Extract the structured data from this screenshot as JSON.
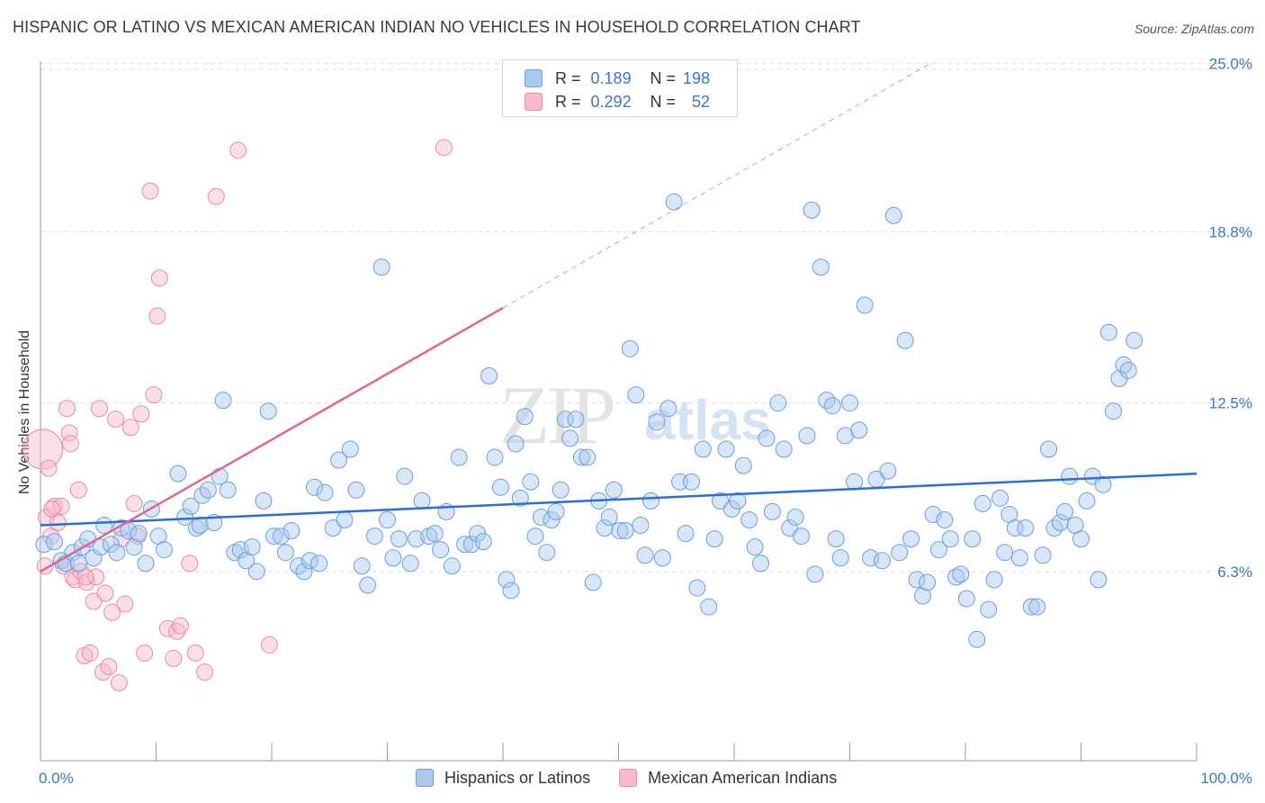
{
  "title": "HISPANIC OR LATINO VS MEXICAN AMERICAN INDIAN NO VEHICLES IN HOUSEHOLD CORRELATION CHART",
  "source": "Source: ZipAtlas.com",
  "watermark": {
    "zip": "ZIP",
    "atlas": "atlas"
  },
  "colors": {
    "blue_fill": "#aac8f0",
    "blue_stroke": "#6a9fe0",
    "blue_line": "#2d6fd1",
    "pink_fill": "#f7b9cb",
    "pink_stroke": "#e98aa8",
    "pink_line": "#e0668f",
    "axis_text": "#3b78c9",
    "grid": "#dddddd"
  },
  "legend_top": [
    {
      "r_label": "R =",
      "r_value": "0.189",
      "n_label": "N =",
      "n_value": "198"
    },
    {
      "r_label": "R =",
      "r_value": "0.292",
      "n_label": "N =",
      "n_value": "52"
    }
  ],
  "legend_bottom": [
    "Hispanics or Latinos",
    "Mexican American Indians"
  ],
  "chart_data": {
    "type": "scatter",
    "title": "HISPANIC OR LATINO VS MEXICAN AMERICAN INDIAN NO VEHICLES IN HOUSEHOLD CORRELATION CHART",
    "xlabel": "",
    "ylabel": "No Vehicles in Household",
    "xlim": [
      0,
      100
    ],
    "ylim": [
      0,
      27
    ],
    "x_tick_labels": [
      "0.0%",
      "100.0%"
    ],
    "y_ticks": [
      6.3,
      12.5,
      18.8,
      25.0
    ],
    "y_tick_labels": [
      "6.3%",
      "12.5%",
      "18.8%",
      "25.0%"
    ],
    "grid": "horizontal dashed",
    "legend_position": "top-center",
    "series": [
      {
        "name": "Hispanics or Latinos",
        "color": "#aac8f0",
        "r": 0.189,
        "n": 198,
        "trend": {
          "x": [
            0,
            100
          ],
          "y": [
            8.0,
            9.9
          ],
          "style": "solid"
        },
        "points": [
          [
            0.3,
            7.3
          ],
          [
            1.2,
            7.4
          ],
          [
            1.8,
            6.7
          ],
          [
            2.2,
            6.6
          ],
          [
            2.8,
            7.0
          ],
          [
            3.3,
            6.6
          ],
          [
            3.6,
            7.2
          ],
          [
            4.1,
            7.5
          ],
          [
            4.6,
            6.8
          ],
          [
            5.2,
            7.2
          ],
          [
            5.5,
            8.0
          ],
          [
            6.1,
            7.3
          ],
          [
            6.6,
            7.0
          ],
          [
            7.0,
            7.9
          ],
          [
            7.6,
            7.8
          ],
          [
            8.1,
            7.2
          ],
          [
            8.5,
            7.7
          ],
          [
            9.1,
            6.6
          ],
          [
            9.6,
            8.6
          ],
          [
            10.2,
            7.6
          ],
          [
            10.7,
            7.1
          ],
          [
            11.9,
            9.9
          ],
          [
            12.5,
            8.3
          ],
          [
            13.0,
            8.7
          ],
          [
            13.5,
            7.9
          ],
          [
            13.8,
            8.0
          ],
          [
            14.0,
            9.1
          ],
          [
            14.5,
            9.3
          ],
          [
            15.0,
            8.1
          ],
          [
            15.5,
            9.8
          ],
          [
            15.8,
            12.6
          ],
          [
            16.2,
            9.3
          ],
          [
            16.8,
            7.0
          ],
          [
            17.3,
            7.1
          ],
          [
            17.8,
            6.7
          ],
          [
            18.3,
            7.2
          ],
          [
            18.7,
            6.3
          ],
          [
            19.3,
            8.9
          ],
          [
            19.7,
            12.2
          ],
          [
            20.2,
            7.6
          ],
          [
            20.8,
            7.6
          ],
          [
            21.2,
            7.0
          ],
          [
            21.7,
            7.8
          ],
          [
            22.3,
            6.5
          ],
          [
            22.8,
            6.3
          ],
          [
            23.3,
            6.7
          ],
          [
            23.7,
            9.4
          ],
          [
            24.1,
            6.6
          ],
          [
            24.6,
            9.2
          ],
          [
            25.3,
            7.9
          ],
          [
            25.8,
            10.4
          ],
          [
            26.3,
            8.2
          ],
          [
            26.8,
            10.8
          ],
          [
            27.3,
            9.3
          ],
          [
            27.8,
            6.5
          ],
          [
            28.3,
            5.8
          ],
          [
            28.9,
            7.6
          ],
          [
            29.5,
            17.5
          ],
          [
            30.0,
            8.2
          ],
          [
            30.5,
            6.8
          ],
          [
            31.0,
            7.5
          ],
          [
            31.5,
            9.8
          ],
          [
            32.0,
            6.6
          ],
          [
            32.5,
            7.5
          ],
          [
            33.0,
            8.9
          ],
          [
            33.6,
            7.6
          ],
          [
            34.1,
            7.7
          ],
          [
            34.6,
            7.1
          ],
          [
            35.1,
            8.5
          ],
          [
            35.6,
            6.5
          ],
          [
            36.2,
            10.5
          ],
          [
            36.7,
            7.3
          ],
          [
            37.3,
            7.3
          ],
          [
            37.8,
            7.7
          ],
          [
            38.3,
            7.4
          ],
          [
            38.8,
            13.5
          ],
          [
            39.3,
            10.5
          ],
          [
            39.8,
            9.4
          ],
          [
            40.3,
            6.0
          ],
          [
            40.7,
            5.6
          ],
          [
            41.1,
            11.0
          ],
          [
            41.5,
            9.0
          ],
          [
            41.9,
            12.0
          ],
          [
            42.4,
            9.6
          ],
          [
            42.8,
            7.6
          ],
          [
            43.3,
            8.3
          ],
          [
            43.8,
            7.0
          ],
          [
            44.2,
            8.2
          ],
          [
            44.6,
            8.5
          ],
          [
            45.0,
            9.3
          ],
          [
            45.4,
            11.9
          ],
          [
            45.8,
            11.2
          ],
          [
            46.3,
            11.9
          ],
          [
            46.8,
            10.5
          ],
          [
            47.3,
            10.5
          ],
          [
            47.8,
            5.9
          ],
          [
            48.3,
            8.9
          ],
          [
            48.8,
            7.9
          ],
          [
            49.2,
            8.3
          ],
          [
            49.6,
            9.3
          ],
          [
            50.1,
            7.8
          ],
          [
            50.6,
            7.8
          ],
          [
            51.0,
            14.5
          ],
          [
            51.5,
            12.8
          ],
          [
            51.9,
            8.0
          ],
          [
            52.3,
            6.9
          ],
          [
            52.8,
            8.9
          ],
          [
            53.3,
            11.8
          ],
          [
            53.8,
            6.8
          ],
          [
            54.3,
            12.3
          ],
          [
            54.8,
            19.9
          ],
          [
            55.3,
            9.6
          ],
          [
            55.8,
            7.7
          ],
          [
            56.3,
            9.6
          ],
          [
            56.8,
            5.7
          ],
          [
            57.3,
            10.8
          ],
          [
            57.8,
            5.0
          ],
          [
            58.3,
            7.5
          ],
          [
            58.8,
            8.9
          ],
          [
            59.3,
            10.8
          ],
          [
            59.8,
            8.6
          ],
          [
            60.3,
            8.9
          ],
          [
            60.8,
            10.2
          ],
          [
            61.3,
            8.2
          ],
          [
            61.8,
            7.2
          ],
          [
            62.3,
            6.6
          ],
          [
            62.8,
            11.2
          ],
          [
            63.3,
            8.5
          ],
          [
            63.8,
            12.5
          ],
          [
            64.3,
            10.8
          ],
          [
            64.8,
            7.9
          ],
          [
            65.3,
            8.3
          ],
          [
            65.8,
            7.6
          ],
          [
            66.3,
            11.3
          ],
          [
            66.7,
            19.6
          ],
          [
            67.0,
            6.2
          ],
          [
            67.5,
            17.5
          ],
          [
            68.0,
            12.6
          ],
          [
            68.5,
            12.4
          ],
          [
            68.8,
            7.5
          ],
          [
            69.2,
            6.8
          ],
          [
            69.6,
            11.3
          ],
          [
            70.0,
            12.5
          ],
          [
            70.4,
            9.6
          ],
          [
            70.8,
            11.5
          ],
          [
            71.3,
            16.1
          ],
          [
            71.8,
            6.8
          ],
          [
            72.3,
            9.7
          ],
          [
            72.8,
            6.7
          ],
          [
            73.3,
            10.0
          ],
          [
            73.8,
            19.4
          ],
          [
            74.3,
            7.0
          ],
          [
            74.8,
            14.8
          ],
          [
            75.3,
            7.5
          ],
          [
            75.8,
            6.0
          ],
          [
            76.3,
            5.4
          ],
          [
            76.7,
            5.9
          ],
          [
            77.2,
            8.4
          ],
          [
            77.7,
            7.1
          ],
          [
            78.2,
            8.2
          ],
          [
            78.7,
            7.5
          ],
          [
            79.2,
            6.1
          ],
          [
            79.6,
            6.2
          ],
          [
            80.1,
            5.3
          ],
          [
            80.6,
            7.5
          ],
          [
            81.0,
            3.8
          ],
          [
            81.5,
            8.8
          ],
          [
            82.0,
            4.9
          ],
          [
            82.5,
            6.0
          ],
          [
            83.0,
            9.0
          ],
          [
            83.4,
            7.0
          ],
          [
            83.8,
            8.4
          ],
          [
            84.3,
            7.9
          ],
          [
            84.7,
            6.8
          ],
          [
            85.2,
            7.9
          ],
          [
            85.7,
            5.0
          ],
          [
            86.2,
            5.0
          ],
          [
            86.7,
            6.9
          ],
          [
            87.2,
            10.8
          ],
          [
            87.7,
            7.9
          ],
          [
            88.2,
            8.1
          ],
          [
            88.6,
            8.5
          ],
          [
            89.0,
            9.8
          ],
          [
            89.5,
            8.0
          ],
          [
            90.0,
            7.5
          ],
          [
            90.5,
            8.9
          ],
          [
            91.0,
            9.8
          ],
          [
            91.5,
            6.0
          ],
          [
            91.9,
            9.5
          ],
          [
            92.4,
            15.1
          ],
          [
            92.8,
            12.2
          ],
          [
            93.3,
            13.4
          ],
          [
            93.7,
            13.9
          ],
          [
            94.1,
            13.7
          ],
          [
            94.6,
            14.8
          ]
        ]
      },
      {
        "name": "Mexican American Indians",
        "color": "#f7b9cb",
        "r": 0.292,
        "n": 52,
        "trend": {
          "x": [
            0,
            40
          ],
          "y": [
            6.3,
            16.0
          ],
          "dashed_extension": {
            "x": [
              40,
              77
            ],
            "y": [
              16.0,
              25.0
            ]
          }
        },
        "points": [
          [
            0.2,
            10.8
          ],
          [
            0.5,
            8.3
          ],
          [
            0.7,
            10.1
          ],
          [
            0.9,
            7.6
          ],
          [
            1.2,
            8.7
          ],
          [
            1.5,
            8.1
          ],
          [
            1.8,
            8.7
          ],
          [
            2.0,
            6.5
          ],
          [
            2.3,
            12.3
          ],
          [
            2.5,
            11.4
          ],
          [
            2.8,
            6.1
          ],
          [
            3.0,
            6.0
          ],
          [
            3.3,
            9.3
          ],
          [
            3.5,
            6.3
          ],
          [
            3.8,
            3.2
          ],
          [
            4.0,
            5.9
          ],
          [
            4.3,
            3.3
          ],
          [
            4.6,
            5.2
          ],
          [
            4.8,
            6.1
          ],
          [
            5.1,
            12.3
          ],
          [
            5.4,
            2.6
          ],
          [
            5.6,
            5.5
          ],
          [
            5.9,
            2.8
          ],
          [
            6.2,
            4.8
          ],
          [
            6.5,
            11.9
          ],
          [
            6.8,
            2.2
          ],
          [
            7.0,
            7.5
          ],
          [
            7.3,
            5.1
          ],
          [
            7.8,
            11.6
          ],
          [
            8.1,
            8.8
          ],
          [
            8.4,
            7.6
          ],
          [
            8.7,
            12.1
          ],
          [
            9.0,
            3.3
          ],
          [
            9.5,
            20.3
          ],
          [
            9.8,
            12.8
          ],
          [
            10.1,
            15.7
          ],
          [
            10.3,
            17.1
          ],
          [
            11.0,
            4.2
          ],
          [
            11.5,
            3.1
          ],
          [
            11.8,
            4.1
          ],
          [
            12.1,
            4.3
          ],
          [
            12.9,
            6.6
          ],
          [
            13.4,
            3.3
          ],
          [
            14.2,
            2.6
          ],
          [
            15.2,
            20.1
          ],
          [
            17.1,
            21.8
          ],
          [
            19.8,
            3.6
          ],
          [
            34.9,
            21.9
          ],
          [
            0.4,
            6.5
          ],
          [
            1.0,
            8.6
          ],
          [
            2.6,
            11.0
          ],
          [
            3.9,
            6.1
          ]
        ]
      }
    ]
  }
}
